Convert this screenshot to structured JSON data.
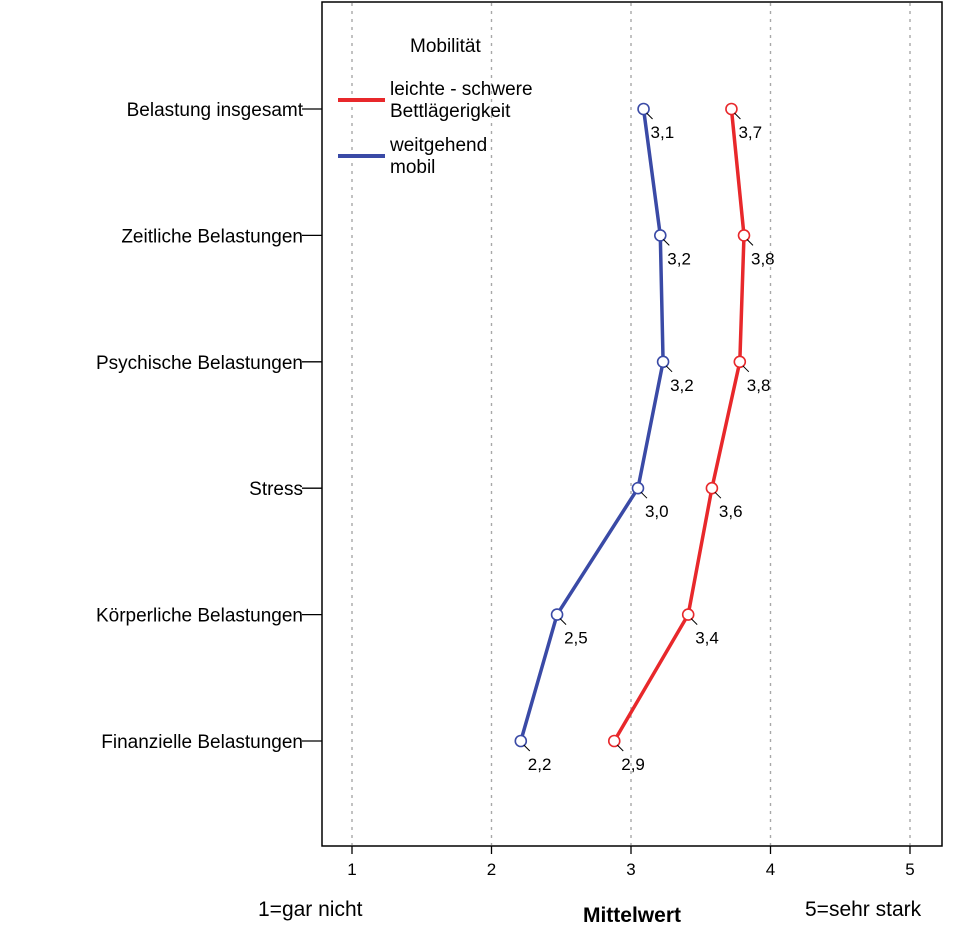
{
  "chart_data": {
    "type": "line",
    "orientation": "horizontal",
    "categories": [
      "Belastung insgesamt",
      "Zeitliche Belastungen",
      "Psychische Belastungen",
      "Stress",
      "Körperliche Belastungen",
      "Finanzielle Belastungen"
    ],
    "series": [
      {
        "name": "leichte - schwere Bettlägerigkeit",
        "legend_lines": [
          "leichte - schwere",
          "Bettlägerigkeit"
        ],
        "color": "#e8282b",
        "values": [
          3.72,
          3.81,
          3.78,
          3.58,
          3.41,
          2.88
        ],
        "labels": [
          "3,7",
          "3,8",
          "3,8",
          "3,6",
          "3,4",
          "2,9"
        ]
      },
      {
        "name": "weitgehend mobil",
        "legend_lines": [
          "weitgehend",
          "mobil"
        ],
        "color": "#3a4aa6",
        "values": [
          3.09,
          3.21,
          3.23,
          3.05,
          2.47,
          2.21
        ],
        "labels": [
          "3,1",
          "3,2",
          "3,2",
          "3,0",
          "2,5",
          "2,2"
        ]
      }
    ],
    "legend_title": "Mobilität",
    "xlabel": "Mittelwert",
    "x_ticks": [
      1,
      2,
      3,
      4,
      5
    ],
    "x_tick_labels": [
      "1",
      "2",
      "3",
      "4",
      "5"
    ],
    "xlim": [
      0.8,
      5.25
    ],
    "gridlines": "vertical dashed",
    "legend_position": "top-left",
    "scale_low_label": "1=gar nicht",
    "scale_high_label": "5=sehr stark"
  }
}
